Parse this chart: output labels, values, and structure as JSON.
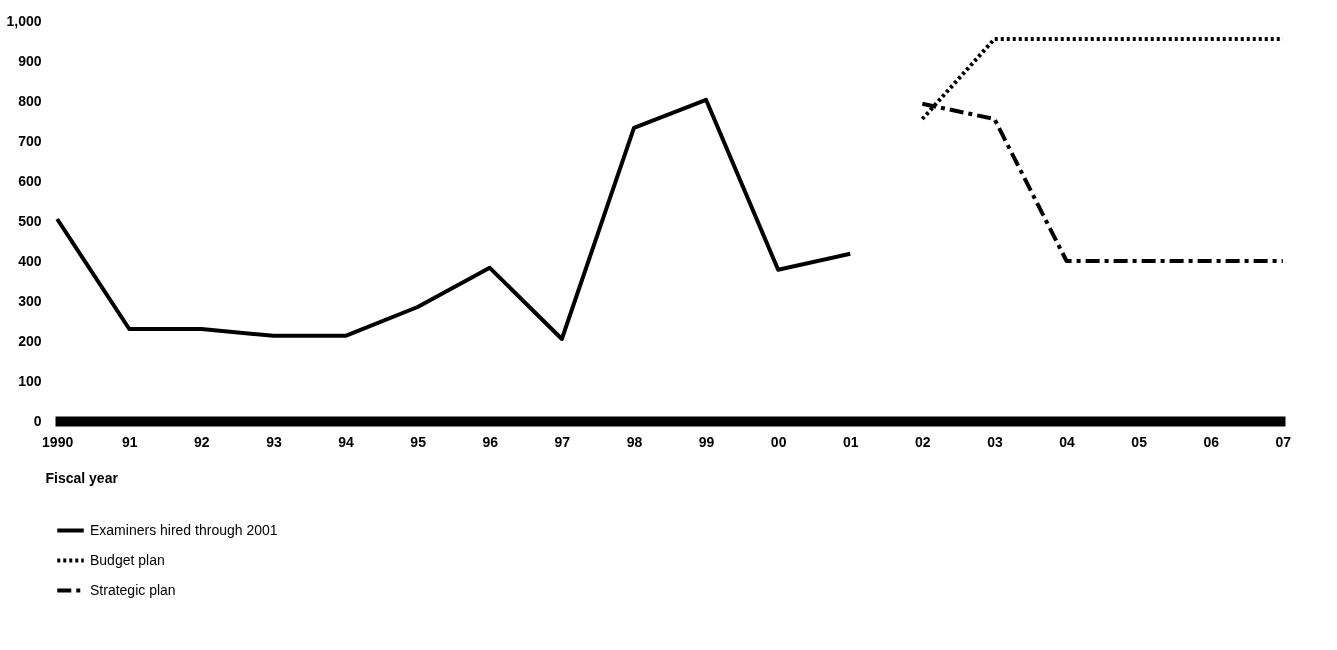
{
  "chart_data": {
    "type": "line",
    "xlabel": "Fiscal year",
    "categories": [
      "1990",
      "91",
      "92",
      "93",
      "94",
      "95",
      "96",
      "97",
      "98",
      "99",
      "00",
      "01",
      "02",
      "03",
      "04",
      "05",
      "06",
      "07"
    ],
    "series": [
      {
        "name": "Examiners hired through 2001",
        "color": "#000000",
        "line_style": "solid",
        "values": [
          505,
          230,
          230,
          213,
          213,
          285,
          383,
          205,
          733,
          803,
          378,
          418,
          null,
          null,
          null,
          null,
          null,
          null
        ]
      },
      {
        "name": "Budget plan",
        "color": "#000000",
        "line_style": "dotted",
        "values": [
          null,
          null,
          null,
          null,
          null,
          null,
          null,
          null,
          null,
          null,
          null,
          null,
          755,
          955,
          955,
          955,
          955,
          955
        ]
      },
      {
        "name": "Strategic plan",
        "color": "#000000",
        "line_style": "dashdot",
        "values": [
          null,
          null,
          null,
          null,
          null,
          null,
          null,
          null,
          null,
          null,
          null,
          null,
          793,
          755,
          400,
          400,
          400,
          400
        ]
      }
    ],
    "ylim": [
      0,
      1000
    ],
    "yticks": [
      0,
      100,
      200,
      300,
      400,
      500,
      600,
      700,
      800,
      900,
      {
        "value": 1000,
        "label": "1,000"
      }
    ],
    "grid": false,
    "legend": "bottom left"
  }
}
